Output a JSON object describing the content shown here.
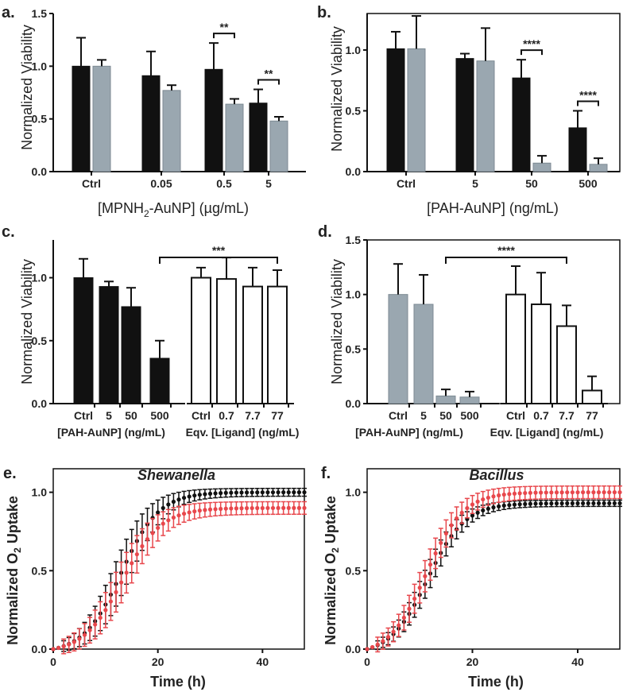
{
  "panels": {
    "a": {
      "letter": "a."
    },
    "b": {
      "letter": "b."
    },
    "c": {
      "letter": "c."
    },
    "d": {
      "letter": "d."
    },
    "e": {
      "letter": "e."
    },
    "f": {
      "letter": "f."
    }
  },
  "colors": {
    "black_bar": "#111111",
    "gray_bar": "#9aa7b0",
    "open_bar": "#ffffff",
    "shewanella_black": "#111111",
    "red_series": "#e8474c"
  },
  "chart_data": [
    {
      "id": "a",
      "type": "bar",
      "ylabel": "Normalized Viability",
      "xlabel_parts": [
        "[MPNH",
        "2",
        "-AuNP] (",
        "µ",
        "g/mL)"
      ],
      "ylim": [
        0,
        1.5
      ],
      "yticks": [
        "0.0",
        "0.5",
        "1.0",
        "1.5"
      ],
      "categories": [
        "Ctrl",
        "0.05",
        "0.5",
        "5"
      ],
      "series": [
        {
          "name": "black",
          "values": [
            1.0,
            0.91,
            0.97,
            0.65
          ],
          "errors": [
            0.27,
            0.23,
            0.25,
            0.13
          ]
        },
        {
          "name": "gray",
          "values": [
            1.0,
            0.77,
            0.64,
            0.48
          ],
          "errors": [
            0.06,
            0.05,
            0.05,
            0.04
          ]
        }
      ],
      "significance": [
        {
          "label": "**",
          "category": 2
        },
        {
          "label": "**",
          "category": 3
        }
      ]
    },
    {
      "id": "b",
      "type": "bar",
      "ylabel": "Normalized Viability",
      "xlabel": "[PAH-AuNP] (ng/mL)",
      "ylim": [
        0,
        1.3
      ],
      "yticks": [
        "0.0",
        "0.5",
        "1.0"
      ],
      "categories": [
        "Ctrl",
        "5",
        "50",
        "500"
      ],
      "series": [
        {
          "name": "black",
          "values": [
            1.01,
            0.93,
            0.77,
            0.36
          ],
          "errors": [
            0.14,
            0.04,
            0.15,
            0.14
          ]
        },
        {
          "name": "gray",
          "values": [
            1.01,
            0.91,
            0.07,
            0.06
          ],
          "errors": [
            0.27,
            0.27,
            0.06,
            0.05
          ]
        }
      ],
      "significance": [
        {
          "label": "****",
          "category": 2
        },
        {
          "label": "****",
          "category": 3
        }
      ]
    },
    {
      "id": "c",
      "type": "bar",
      "ylabel": "Normalized Viability",
      "ylim": [
        0,
        1.3
      ],
      "yticks": [
        "0.0",
        "0.5",
        "1.0"
      ],
      "categories": [
        "Ctrl",
        "5",
        "50",
        "500",
        "Ctrl",
        "0.7",
        "7.7",
        "77"
      ],
      "values": [
        1.0,
        0.93,
        0.77,
        0.36,
        1.0,
        0.99,
        0.93,
        0.93
      ],
      "errors": [
        0.15,
        0.04,
        0.15,
        0.14,
        0.08,
        0.17,
        0.15,
        0.13
      ],
      "styles": [
        "black",
        "black",
        "black",
        "black",
        "open",
        "open",
        "open",
        "open"
      ],
      "group_labels": [
        "[PAH-AuNP] (ng/mL)",
        "Eqv. [Ligand] (ng/mL)"
      ],
      "significance": [
        {
          "label": "***",
          "from": 3,
          "to": 7
        }
      ]
    },
    {
      "id": "d",
      "type": "bar",
      "ylabel": "Normalized Viability",
      "ylim": [
        0,
        1.5
      ],
      "yticks": [
        "0.0",
        "0.5",
        "1.0",
        "1.5"
      ],
      "categories": [
        "Ctrl",
        "5",
        "50",
        "500",
        "Ctrl",
        "0.7",
        "7.7",
        "77"
      ],
      "values": [
        1.0,
        0.91,
        0.07,
        0.06,
        1.0,
        0.91,
        0.71,
        0.12
      ],
      "errors": [
        0.28,
        0.27,
        0.06,
        0.05,
        0.26,
        0.29,
        0.19,
        0.13
      ],
      "styles": [
        "gray",
        "gray",
        "gray",
        "gray",
        "open",
        "open",
        "open",
        "open"
      ],
      "group_labels": [
        "[PAH-AuNP] (ng/mL)",
        "Eqv. [Ligand] (ng/mL)"
      ],
      "significance": [
        {
          "label": "****",
          "from": 2,
          "to": 6
        }
      ]
    },
    {
      "id": "e",
      "type": "line",
      "title": "Shewanella",
      "xlabel": "Time (h)",
      "ylabel_parts": [
        "Normalized O",
        "2",
        " Uptake"
      ],
      "xlim": [
        0,
        48
      ],
      "ylim": [
        0,
        1.15
      ],
      "xticks": [
        "0",
        "20",
        "40"
      ],
      "yticks": [
        "0.0",
        "0.5",
        "1.0"
      ],
      "series": [
        {
          "name": "black",
          "midpoint": 13.0,
          "scale": 3.6,
          "max": 1.0,
          "error": 0.025,
          "error_peak": 0.12
        },
        {
          "name": "red",
          "midpoint": 13.2,
          "scale": 3.7,
          "max": 0.9,
          "error": 0.04,
          "error_peak": 0.09
        }
      ]
    },
    {
      "id": "f",
      "type": "line",
      "title": "Bacillus",
      "xlabel": "Time (h)",
      "ylabel_parts": [
        "Normalized O",
        "2",
        " Uptake"
      ],
      "xlim": [
        0,
        48
      ],
      "ylim": [
        0,
        1.15
      ],
      "xticks": [
        "0",
        "20",
        "40"
      ],
      "yticks": [
        "0.0",
        "0.5",
        "1.0"
      ],
      "series": [
        {
          "name": "black",
          "midpoint": 11.5,
          "scale": 3.5,
          "max": 0.93,
          "error": 0.02,
          "error_peak": 0.07
        },
        {
          "name": "red",
          "midpoint": 11.2,
          "scale": 3.5,
          "max": 1.0,
          "error": 0.04,
          "error_peak": 0.06
        }
      ]
    }
  ]
}
